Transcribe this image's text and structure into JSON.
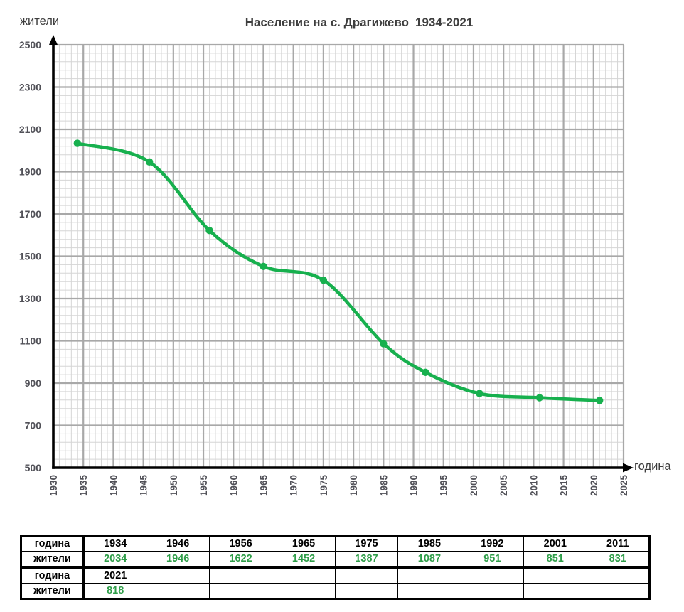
{
  "header": {
    "title_main": "Население на с. Драгижево",
    "title_range": "1934-2021"
  },
  "axis_labels": {
    "y_unit": "жители",
    "x_unit": "година"
  },
  "colors": {
    "line": "#17b04e",
    "title": "#3f3f3f",
    "unit_label": "#3d3d3d",
    "tick": "#515158",
    "grid_minor": "#d5d5d5",
    "grid_major": "#a8a8a8",
    "axis": "#000000",
    "year_text": "#000000",
    "value_text": "#2f9e49",
    "table_border": "#000000"
  },
  "chart_data": {
    "type": "line",
    "title": "Население на с. Драгижево 1934-2021",
    "xlabel": "година",
    "ylabel": "жители",
    "x": [
      1934,
      1946,
      1956,
      1965,
      1975,
      1985,
      1992,
      2001,
      2011,
      2021
    ],
    "y": [
      2034,
      1946,
      1622,
      1452,
      1387,
      1087,
      951,
      851,
      831,
      818
    ],
    "xlim": [
      1930,
      2025
    ],
    "ylim": [
      500,
      2500
    ],
    "x_ticks": [
      1930,
      1935,
      1940,
      1945,
      1950,
      1955,
      1960,
      1965,
      1970,
      1975,
      1980,
      1985,
      1990,
      1995,
      2000,
      2005,
      2010,
      2015,
      2020,
      2025
    ],
    "y_ticks": [
      500,
      700,
      900,
      1100,
      1300,
      1500,
      1700,
      1900,
      2100,
      2300,
      2500
    ],
    "x_minor_step": 1,
    "y_minor_step": 40,
    "grid": "minor-and-major",
    "legend": false,
    "marker": "circle",
    "smooth": true
  },
  "tables": [
    {
      "rows": [
        {
          "header": "година",
          "kind": "year",
          "cells": [
            "1934",
            "1946",
            "1956",
            "1965",
            "1975",
            "1985",
            "1992",
            "2001",
            "2011"
          ]
        },
        {
          "header": "жители",
          "kind": "value",
          "cells": [
            "2034",
            "1946",
            "1622",
            "1452",
            "1387",
            "1087",
            "951",
            "851",
            "831"
          ]
        }
      ]
    },
    {
      "rows": [
        {
          "header": "година",
          "kind": "year",
          "cells": [
            "2021",
            "",
            "",
            "",
            "",
            "",
            "",
            "",
            ""
          ]
        },
        {
          "header": "жители",
          "kind": "value",
          "cells": [
            "818",
            "",
            "",
            "",
            "",
            "",
            "",
            "",
            ""
          ]
        }
      ]
    }
  ]
}
